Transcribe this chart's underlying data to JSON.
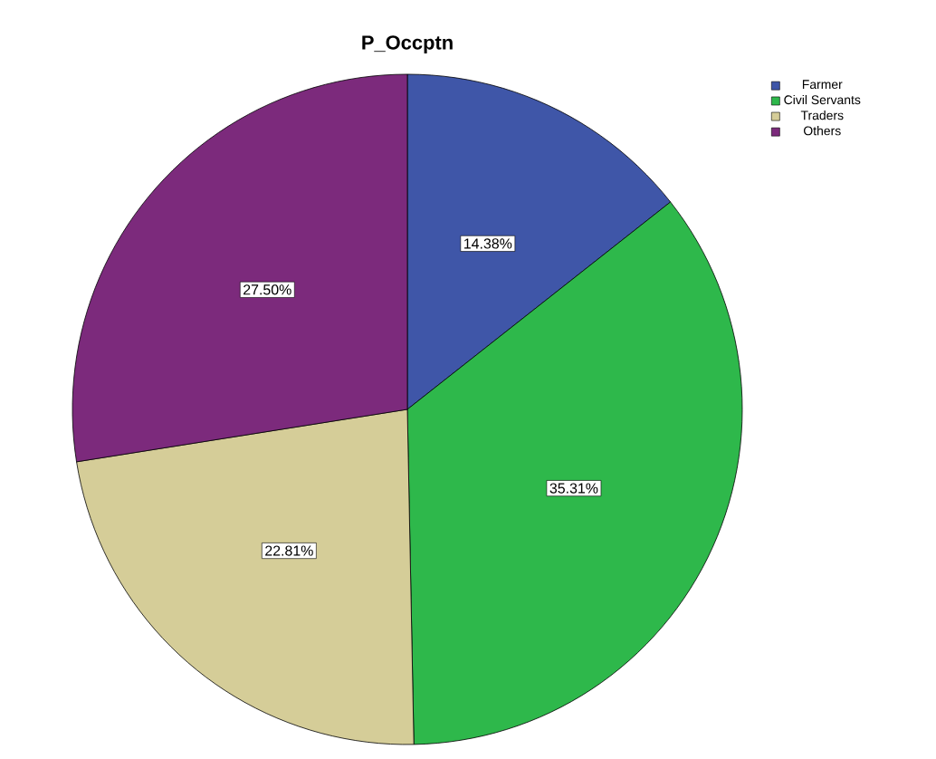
{
  "chart_data": {
    "type": "pie",
    "title": "P_Occptn",
    "categories": [
      "Farmer",
      "Civil Servants",
      "Traders",
      "Others"
    ],
    "values": [
      14.38,
      35.31,
      22.81,
      27.5
    ],
    "value_labels": [
      "14.38%",
      "35.31%",
      "22.81%",
      "27.50%"
    ],
    "colors": [
      "#3f56a8",
      "#2eb84b",
      "#d5cd98",
      "#7c2a7c"
    ],
    "legend": "top right"
  }
}
